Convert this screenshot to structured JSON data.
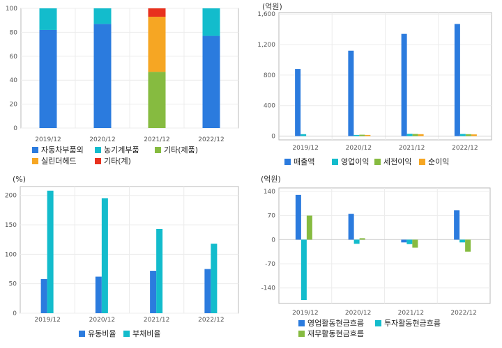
{
  "chart_data": [
    {
      "type": "bar",
      "stacked": true,
      "unit": "",
      "categories": [
        "2019/12",
        "2020/12",
        "2021/12",
        "2022/12"
      ],
      "ylim": [
        0,
        100
      ],
      "yticks": [
        "0",
        "20",
        "40",
        "60",
        "80",
        "100"
      ],
      "series": [
        {
          "name": "자동차부품외",
          "color": "#2b7bde",
          "values": [
            82,
            87,
            0,
            77
          ]
        },
        {
          "name": "농기계부품",
          "color": "#13bccc",
          "values": [
            18,
            13,
            0,
            23
          ]
        },
        {
          "name": "기타(제품)",
          "color": "#86bb40",
          "values": [
            0,
            0,
            47,
            0
          ]
        },
        {
          "name": "실린더헤드",
          "color": "#f6a623",
          "values": [
            0,
            0,
            46,
            0
          ]
        },
        {
          "name": "기타(계)",
          "color": "#e8311e",
          "values": [
            0,
            0,
            7,
            0
          ]
        }
      ]
    },
    {
      "type": "bar",
      "unit": "(억원)",
      "categories": [
        "2019/12",
        "2020/12",
        "2021/12",
        "2022/12"
      ],
      "ylim": [
        -50,
        1620
      ],
      "yticks": [
        "0",
        "400",
        "800",
        "1,200",
        "1,600"
      ],
      "series": [
        {
          "name": "매출액",
          "color": "#2b7bde",
          "values": [
            880,
            1120,
            1340,
            1470
          ]
        },
        {
          "name": "영업이익",
          "color": "#13bccc",
          "values": [
            25,
            15,
            30,
            28
          ]
        },
        {
          "name": "세전이익",
          "color": "#86bb40",
          "values": [
            0,
            18,
            28,
            25
          ]
        },
        {
          "name": "순이익",
          "color": "#f6a623",
          "values": [
            0,
            15,
            25,
            22
          ]
        }
      ]
    },
    {
      "type": "bar",
      "unit": "(%)",
      "categories": [
        "2019/12",
        "2020/12",
        "2021/12",
        "2022/12"
      ],
      "ylim": [
        0,
        215
      ],
      "yticks": [
        "0",
        "50",
        "100",
        "150",
        "200"
      ],
      "series": [
        {
          "name": "유동비율",
          "color": "#2b7bde",
          "values": [
            58,
            62,
            72,
            75
          ]
        },
        {
          "name": "부채비율",
          "color": "#13bccc",
          "values": [
            208,
            195,
            143,
            118
          ]
        }
      ]
    },
    {
      "type": "bar",
      "unit": "(억원)",
      "categories": [
        "2019/12",
        "2020/12",
        "2021/12",
        "2022/12"
      ],
      "ylim": [
        -185,
        150
      ],
      "yticks": [
        "-140",
        "-70",
        "0",
        "70",
        "140"
      ],
      "series": [
        {
          "name": "영업활동현금흐름",
          "color": "#2b7bde",
          "values": [
            130,
            75,
            -8,
            85
          ]
        },
        {
          "name": "투자활동현금흐름",
          "color": "#13bccc",
          "values": [
            -175,
            -12,
            -13,
            -8
          ]
        },
        {
          "name": "재무활동현금흐름",
          "color": "#86bb40",
          "values": [
            70,
            4,
            -23,
            -35
          ]
        }
      ]
    }
  ]
}
